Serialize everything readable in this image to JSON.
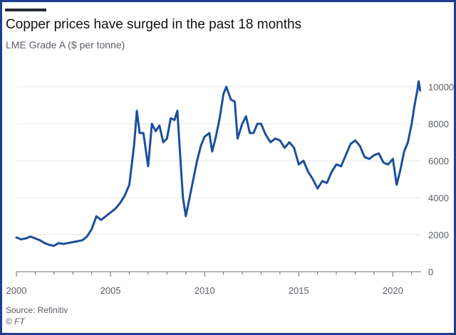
{
  "colors": {
    "line": "#1b4f9c",
    "grid": "#e6e6e6",
    "axis": "#6b6b6b",
    "frame": "#1f3f8f"
  },
  "chart_data": {
    "type": "line",
    "title": "Copper prices have surged in the past 18 months",
    "subtitle": "LME Grade A ($ per tonne)",
    "xlabel": "",
    "ylabel": "",
    "xlim": [
      2000,
      2021.5
    ],
    "ylim": [
      0,
      10500
    ],
    "x_ticks": [
      2000,
      2005,
      2010,
      2015,
      2020
    ],
    "y_ticks": [
      0,
      2000,
      4000,
      6000,
      8000,
      10000
    ],
    "y_axis_side": "right",
    "grid": "horizontal",
    "legend": "none",
    "series": [
      {
        "values": [
          [
            2000.0,
            1850
          ],
          [
            2000.25,
            1750
          ],
          [
            2000.5,
            1800
          ],
          [
            2000.75,
            1900
          ],
          [
            2001.0,
            1800
          ],
          [
            2001.25,
            1700
          ],
          [
            2001.5,
            1550
          ],
          [
            2001.75,
            1450
          ],
          [
            2002.0,
            1400
          ],
          [
            2002.25,
            1550
          ],
          [
            2002.5,
            1500
          ],
          [
            2002.75,
            1550
          ],
          [
            2003.0,
            1600
          ],
          [
            2003.25,
            1650
          ],
          [
            2003.5,
            1700
          ],
          [
            2003.75,
            1900
          ],
          [
            2004.0,
            2300
          ],
          [
            2004.25,
            3000
          ],
          [
            2004.5,
            2800
          ],
          [
            2004.75,
            3000
          ],
          [
            2005.0,
            3200
          ],
          [
            2005.25,
            3400
          ],
          [
            2005.5,
            3700
          ],
          [
            2005.75,
            4100
          ],
          [
            2006.0,
            4700
          ],
          [
            2006.25,
            6800
          ],
          [
            2006.4,
            8700
          ],
          [
            2006.55,
            7500
          ],
          [
            2006.75,
            7500
          ],
          [
            2007.0,
            5700
          ],
          [
            2007.2,
            8000
          ],
          [
            2007.4,
            7600
          ],
          [
            2007.6,
            7900
          ],
          [
            2007.8,
            7000
          ],
          [
            2008.0,
            7200
          ],
          [
            2008.2,
            8300
          ],
          [
            2008.4,
            8200
          ],
          [
            2008.55,
            8700
          ],
          [
            2008.75,
            5500
          ],
          [
            2008.85,
            4000
          ],
          [
            2009.0,
            3000
          ],
          [
            2009.2,
            4000
          ],
          [
            2009.4,
            5000
          ],
          [
            2009.6,
            6000
          ],
          [
            2009.8,
            6800
          ],
          [
            2010.0,
            7300
          ],
          [
            2010.25,
            7500
          ],
          [
            2010.4,
            6500
          ],
          [
            2010.6,
            7300
          ],
          [
            2010.8,
            8300
          ],
          [
            2011.0,
            9600
          ],
          [
            2011.15,
            10000
          ],
          [
            2011.4,
            9300
          ],
          [
            2011.6,
            9200
          ],
          [
            2011.75,
            7200
          ],
          [
            2012.0,
            8000
          ],
          [
            2012.2,
            8400
          ],
          [
            2012.4,
            7500
          ],
          [
            2012.6,
            7500
          ],
          [
            2012.8,
            8000
          ],
          [
            2013.0,
            8000
          ],
          [
            2013.25,
            7400
          ],
          [
            2013.5,
            7000
          ],
          [
            2013.75,
            7200
          ],
          [
            2014.0,
            7100
          ],
          [
            2014.25,
            6700
          ],
          [
            2014.5,
            7000
          ],
          [
            2014.75,
            6700
          ],
          [
            2015.0,
            5800
          ],
          [
            2015.25,
            6000
          ],
          [
            2015.5,
            5400
          ],
          [
            2015.75,
            5000
          ],
          [
            2016.0,
            4500
          ],
          [
            2016.25,
            4900
          ],
          [
            2016.5,
            4800
          ],
          [
            2016.75,
            5400
          ],
          [
            2017.0,
            5800
          ],
          [
            2017.25,
            5700
          ],
          [
            2017.5,
            6300
          ],
          [
            2017.75,
            6900
          ],
          [
            2018.0,
            7100
          ],
          [
            2018.25,
            6800
          ],
          [
            2018.5,
            6200
          ],
          [
            2018.75,
            6100
          ],
          [
            2019.0,
            6300
          ],
          [
            2019.25,
            6400
          ],
          [
            2019.5,
            5900
          ],
          [
            2019.75,
            5800
          ],
          [
            2020.0,
            6100
          ],
          [
            2020.2,
            4700
          ],
          [
            2020.4,
            5500
          ],
          [
            2020.6,
            6500
          ],
          [
            2020.8,
            7000
          ],
          [
            2021.0,
            8000
          ],
          [
            2021.15,
            9000
          ],
          [
            2021.3,
            9800
          ],
          [
            2021.37,
            10300
          ],
          [
            2021.45,
            9800
          ]
        ]
      }
    ],
    "source": "Source: Refinitiv",
    "credit": "© FT"
  }
}
